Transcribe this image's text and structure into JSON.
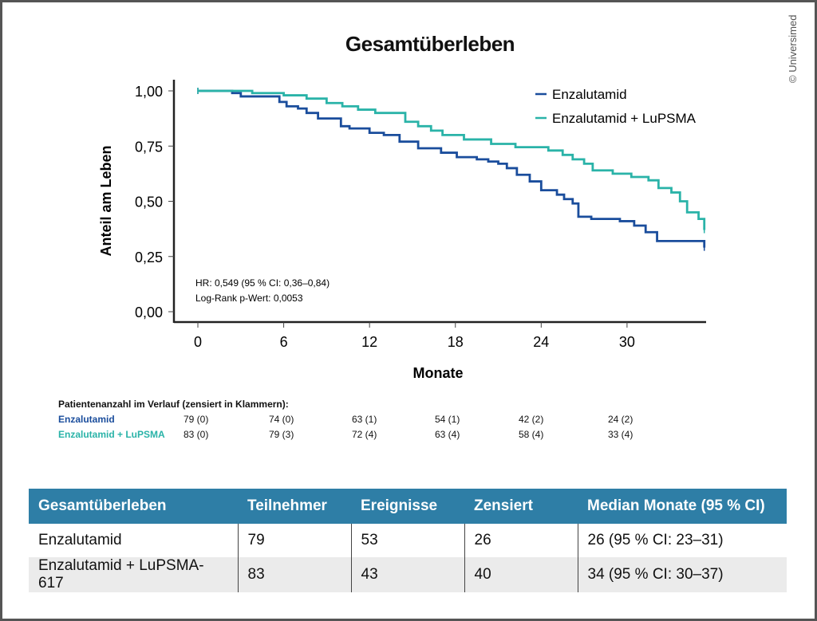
{
  "copyright": "© Universimed",
  "chart_data": {
    "type": "line",
    "subtype": "kaplan-meier",
    "title": "Gesamtüberleben",
    "xlabel": "Monate",
    "ylabel": "Anteil am Leben",
    "xlim": [
      0,
      36
    ],
    "ylim": [
      0,
      1
    ],
    "xticks": [
      0,
      6,
      12,
      18,
      24,
      30
    ],
    "yticks": [
      "0,00",
      "0,25",
      "0,50",
      "0,75",
      "1,00"
    ],
    "ytick_values": [
      0,
      0.25,
      0.5,
      0.75,
      1.0
    ],
    "legend_position": "top-right",
    "annotations": [
      "HR: 0,549 (95 % CI: 0,36–0,84)",
      "Log-Rank p-Wert: 0,0053"
    ],
    "series": [
      {
        "name": "Enzalutamid",
        "color": "#1a4d9c",
        "x": [
          0,
          2.4,
          3.0,
          5.7,
          6.2,
          7.0,
          7.6,
          8.4,
          10.0,
          10.6,
          12.0,
          13.0,
          14.1,
          15.4,
          17.0,
          18.1,
          19.5,
          20.3,
          21.0,
          21.6,
          22.3,
          23.2,
          24.0,
          25.1,
          25.6,
          26.2,
          26.6,
          27.5,
          29.5,
          30.5,
          31.3,
          32.1,
          35.4
        ],
        "y": [
          1.0,
          0.99,
          0.975,
          0.95,
          0.93,
          0.92,
          0.9,
          0.875,
          0.84,
          0.83,
          0.81,
          0.8,
          0.77,
          0.74,
          0.72,
          0.7,
          0.69,
          0.68,
          0.67,
          0.65,
          0.62,
          0.59,
          0.55,
          0.53,
          0.51,
          0.49,
          0.43,
          0.42,
          0.41,
          0.39,
          0.36,
          0.32,
          0.29
        ]
      },
      {
        "name": "Enzalutamid + LuPSMA",
        "color": "#2ab3a8",
        "x": [
          0,
          3.8,
          6.0,
          7.6,
          9.0,
          10.1,
          11.2,
          12.4,
          14.5,
          15.4,
          16.3,
          17.1,
          18.6,
          20.5,
          22.2,
          24.5,
          25.5,
          26.2,
          27.0,
          27.6,
          29.0,
          30.3,
          31.5,
          32.2,
          33.1,
          33.7,
          34.2,
          35.0,
          35.4
        ],
        "y": [
          1.0,
          0.99,
          0.98,
          0.965,
          0.945,
          0.93,
          0.915,
          0.9,
          0.86,
          0.84,
          0.82,
          0.8,
          0.78,
          0.76,
          0.745,
          0.73,
          0.71,
          0.69,
          0.67,
          0.64,
          0.625,
          0.61,
          0.595,
          0.56,
          0.54,
          0.5,
          0.45,
          0.42,
          0.37
        ]
      }
    ],
    "risk_table": {
      "title": "Patientenanzahl im Verlauf (zensiert in Klammern):",
      "times": [
        0,
        6,
        12,
        18,
        24,
        30
      ],
      "rows": [
        {
          "label": "Enzalutamid",
          "color": "#1a4d9c",
          "values": [
            "79 (0)",
            "74 (0)",
            "63 (1)",
            "54 (1)",
            "42 (2)",
            "24 (2)"
          ]
        },
        {
          "label": "Enzalutamid + LuPSMA",
          "color": "#2ab3a8",
          "values": [
            "83 (0)",
            "79 (3)",
            "72 (4)",
            "63 (4)",
            "58 (4)",
            "33 (4)"
          ]
        }
      ]
    }
  },
  "table": {
    "headers": [
      "Gesamtüberleben",
      "Teilnehmer",
      "Ereignisse",
      "Zensiert",
      "Median Monate (95 % CI)"
    ],
    "rows": [
      [
        "Enzalutamid",
        "79",
        "53",
        "26",
        "26 (95 % CI: 23–31)"
      ],
      [
        "Enzalutamid + LuPSMA-617",
        "83",
        "43",
        "40",
        "34 (95 % CI: 30–37)"
      ]
    ]
  }
}
